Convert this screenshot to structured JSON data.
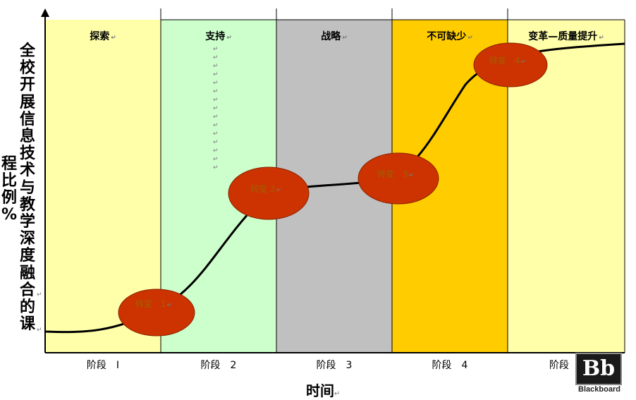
{
  "stages": [
    {
      "title": "探索",
      "label": "阶段　I",
      "color": "#ffffaa"
    },
    {
      "title": "支持",
      "label": "阶段　2",
      "color": "#ccffcc"
    },
    {
      "title": "战略",
      "label": "阶段　3",
      "color": "#c0c0c0"
    },
    {
      "title": "不可缺少",
      "label": "阶段　4",
      "color": "#ffcc00"
    },
    {
      "title": "变革—质量提升",
      "label": "阶段",
      "color": "#ffffaa"
    }
  ],
  "transitions": [
    {
      "label": "转变　1"
    },
    {
      "label": "转变 2"
    },
    {
      "label": "转变　3"
    },
    {
      "label": "转变　4"
    }
  ],
  "y_axis_title_lines": [
    "全校开展信息技术与教学深度融合的课",
    "程比例%"
  ],
  "x_axis_title": "时间",
  "paragraph_mark": "↵",
  "logo": {
    "mark": "Bb",
    "text": "Blackboard"
  },
  "colors": {
    "transition_fill": "#cc3300",
    "curve": "#000000"
  }
}
